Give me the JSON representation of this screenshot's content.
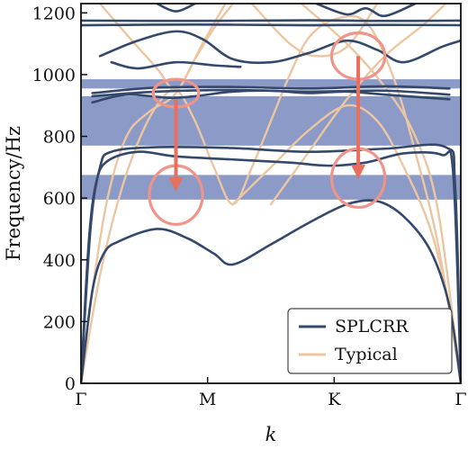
{
  "chart_data": {
    "type": "line",
    "xlabel": "k",
    "ylabel": "Frequency/Hz",
    "ylim": [
      0,
      1230
    ],
    "x_tick_labels": [
      "Γ",
      "M",
      "K",
      "Γ"
    ],
    "y_ticks": [
      0,
      200,
      400,
      600,
      800,
      1000,
      1200
    ],
    "y_tick_labels": [
      "0",
      "200",
      "400",
      "600",
      "800",
      "1000",
      "1200"
    ],
    "grid": false,
    "legend_position": "bottom-right",
    "colors": {
      "splcrr": "#33486b",
      "typical": "#ecc6a0",
      "band": "#7f8fc2",
      "highlight": "#ef9489",
      "arrow": "#e96e5c"
    },
    "band_gaps": [
      {
        "from": 595,
        "to": 675
      },
      {
        "from": 770,
        "to": 930
      },
      {
        "from": 955,
        "to": 985
      }
    ],
    "series": [
      {
        "name": "SPLCRR",
        "color": "#33486b",
        "curves": [
          [
            [
              0,
              0
            ],
            [
              0.03,
              300
            ],
            [
              0.06,
              420
            ],
            [
              0.1,
              460
            ],
            [
              0.2,
              500
            ],
            [
              0.28,
              470
            ],
            [
              0.35,
              420
            ],
            [
              0.4,
              385
            ],
            [
              0.5,
              450
            ],
            [
              0.6,
              520
            ],
            [
              0.7,
              580
            ],
            [
              0.78,
              590
            ],
            [
              0.85,
              540
            ],
            [
              0.92,
              430
            ],
            [
              0.97,
              250
            ],
            [
              1,
              0
            ]
          ],
          [
            [
              0,
              0
            ],
            [
              0.02,
              450
            ],
            [
              0.04,
              650
            ],
            [
              0.07,
              720
            ],
            [
              0.15,
              750
            ],
            [
              0.25,
              735
            ],
            [
              0.4,
              725
            ],
            [
              0.55,
              715
            ],
            [
              0.65,
              705
            ],
            [
              0.75,
              715
            ],
            [
              0.85,
              745
            ],
            [
              0.95,
              740
            ],
            [
              0.98,
              680
            ],
            [
              1,
              0
            ]
          ],
          [
            [
              0,
              0
            ],
            [
              0.025,
              500
            ],
            [
              0.05,
              700
            ],
            [
              0.08,
              750
            ],
            [
              0.2,
              765
            ],
            [
              0.4,
              762
            ],
            [
              0.6,
              750
            ],
            [
              0.8,
              760
            ],
            [
              0.96,
              765
            ],
            [
              0.985,
              640
            ],
            [
              1,
              0
            ]
          ],
          [
            [
              0.03,
              940
            ],
            [
              0.2,
              958
            ],
            [
              0.4,
              960
            ],
            [
              0.6,
              955
            ],
            [
              0.8,
              962
            ],
            [
              0.97,
              955
            ]
          ],
          [
            [
              0.03,
              930
            ],
            [
              0.2,
              945
            ],
            [
              0.4,
              950
            ],
            [
              0.6,
              945
            ],
            [
              0.8,
              948
            ],
            [
              0.97,
              935
            ]
          ],
          [
            [
              0.03,
              910
            ],
            [
              0.12,
              935
            ],
            [
              0.23,
              925
            ],
            [
              0.3,
              930
            ],
            [
              0.4,
              945
            ],
            [
              0.5,
              948
            ],
            [
              0.6,
              940
            ],
            [
              0.7,
              945
            ],
            [
              0.8,
              935
            ],
            [
              0.97,
              920
            ]
          ],
          [
            [
              0.05,
              1060
            ],
            [
              0.15,
              1110
            ],
            [
              0.25,
              1140
            ],
            [
              0.32,
              1115
            ],
            [
              0.4,
              1050
            ],
            [
              0.5,
              1040
            ],
            [
              0.6,
              1070
            ],
            [
              0.7,
              1110
            ],
            [
              0.78,
              1080
            ],
            [
              0.85,
              1040
            ],
            [
              0.95,
              1090
            ],
            [
              1,
              1110
            ]
          ],
          [
            [
              0.08,
              1040
            ],
            [
              0.15,
              1020
            ],
            [
              0.25,
              1040
            ],
            [
              0.35,
              1030
            ],
            [
              0.42,
              1025
            ]
          ],
          [
            [
              0,
              1160
            ],
            [
              0.3,
              1162
            ],
            [
              0.6,
              1160
            ],
            [
              0.8,
              1161
            ],
            [
              1,
              1160
            ]
          ],
          [
            [
              0,
              1175
            ],
            [
              0.3,
              1174
            ],
            [
              0.6,
              1176
            ],
            [
              0.8,
              1174
            ],
            [
              1,
              1175
            ]
          ],
          [
            [
              0.2,
              1230
            ],
            [
              0.25,
              1205
            ],
            [
              0.3,
              1230
            ]
          ],
          [
            [
              0.62,
              1230
            ],
            [
              0.7,
              1195
            ],
            [
              0.75,
              1215
            ],
            [
              0.8,
              1190
            ],
            [
              0.88,
              1230
            ]
          ]
        ]
      },
      {
        "name": "Typical",
        "color": "#ecc6a0",
        "curves": [
          [
            [
              0,
              0
            ],
            [
              0.05,
              350
            ],
            [
              0.1,
              600
            ],
            [
              0.15,
              780
            ],
            [
              0.2,
              900
            ],
            [
              0.25,
              950
            ],
            [
              0.3,
              850
            ],
            [
              0.35,
              700
            ],
            [
              0.4,
              580
            ],
            [
              0.45,
              700
            ],
            [
              0.5,
              850
            ],
            [
              0.55,
              1000
            ],
            [
              0.6,
              1120
            ],
            [
              0.67,
              1180
            ],
            [
              0.75,
              1170
            ],
            [
              0.82,
              1000
            ],
            [
              0.88,
              750
            ],
            [
              0.94,
              450
            ],
            [
              1,
              0
            ]
          ],
          [
            [
              0,
              0
            ],
            [
              0.03,
              300
            ],
            [
              0.07,
              600
            ],
            [
              0.12,
              800
            ],
            [
              0.18,
              880
            ],
            [
              0.25,
              940
            ],
            [
              0.32,
              1100
            ],
            [
              0.38,
              1230
            ]
          ],
          [
            [
              0.05,
              1230
            ],
            [
              0.12,
              1130
            ],
            [
              0.2,
              1020
            ],
            [
              0.25,
              950
            ],
            [
              0.3,
              1050
            ],
            [
              0.35,
              1150
            ],
            [
              0.4,
              1230
            ]
          ],
          [
            [
              0.45,
              1230
            ],
            [
              0.55,
              1100
            ],
            [
              0.62,
              1060
            ],
            [
              0.7,
              1090
            ],
            [
              0.78,
              1230
            ]
          ],
          [
            [
              0.5,
              580
            ],
            [
              0.6,
              750
            ],
            [
              0.7,
              920
            ],
            [
              0.8,
              1060
            ],
            [
              0.9,
              1160
            ],
            [
              0.96,
              1230
            ]
          ],
          [
            [
              0.58,
              1230
            ],
            [
              0.7,
              1100
            ],
            [
              0.8,
              960
            ],
            [
              0.88,
              800
            ],
            [
              0.94,
              560
            ],
            [
              1,
              0
            ]
          ],
          [
            [
              0.4,
              580
            ],
            [
              0.5,
              700
            ],
            [
              0.6,
              820
            ],
            [
              0.7,
              900
            ],
            [
              0.78,
              850
            ],
            [
              0.85,
              700
            ],
            [
              0.92,
              500
            ],
            [
              0.97,
              250
            ],
            [
              1,
              0
            ]
          ]
        ]
      }
    ],
    "highlight_ellipses": [
      {
        "x": 0.25,
        "y": 940,
        "rx": 0.06,
        "ry": 45
      },
      {
        "x": 0.25,
        "y": 610,
        "rx": 0.07,
        "ry": 95
      },
      {
        "x": 0.73,
        "y": 1060,
        "rx": 0.07,
        "ry": 75
      },
      {
        "x": 0.73,
        "y": 665,
        "rx": 0.07,
        "ry": 95
      }
    ],
    "arrows": [
      {
        "x": 0.25,
        "y_from": 920,
        "y_to": 640
      },
      {
        "x": 0.73,
        "y_from": 1060,
        "y_to": 680
      }
    ]
  }
}
